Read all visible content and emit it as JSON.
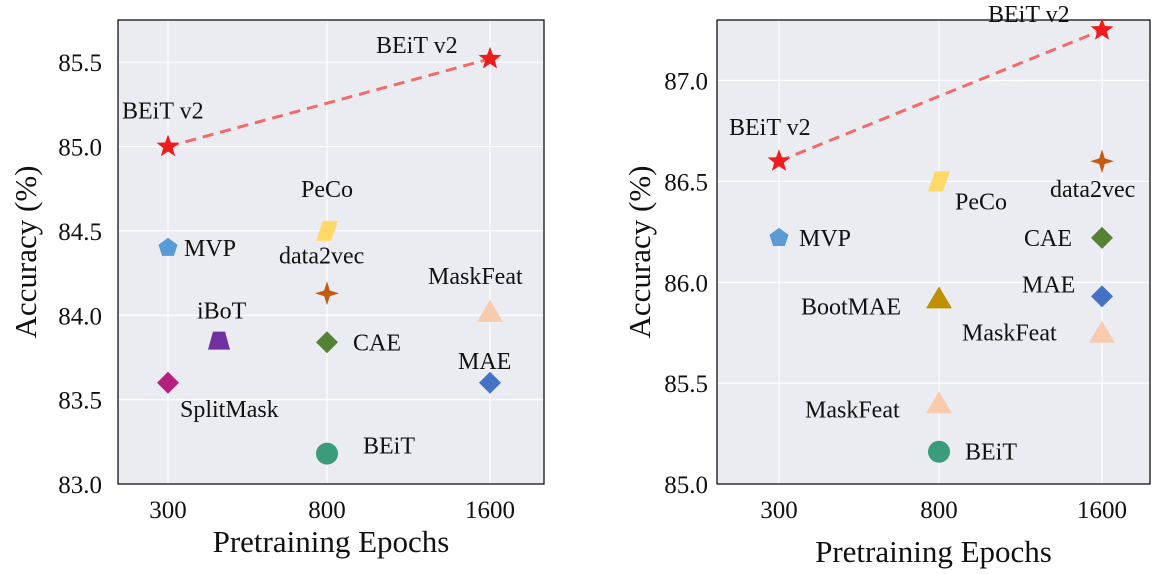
{
  "colors": {
    "plot_background": "#ebebf2",
    "grid": "#ffffff",
    "beit_v2_star": "#ee1c1c",
    "trend_line": "#f26b6b"
  },
  "chart_data": [
    {
      "type": "scatter",
      "xlabel": "Pretraining Epochs",
      "ylabel": "Accuracy (%)",
      "x_ticks": [
        "300",
        "800",
        "1600"
      ],
      "ylim": [
        83.0,
        85.75
      ],
      "y_ticks": [
        "83.0",
        "83.5",
        "84.0",
        "84.5",
        "85.0",
        "85.5"
      ],
      "grid": true,
      "legend": "none",
      "trend_line": {
        "from": [
          "300",
          85.0
        ],
        "to": [
          "1600",
          85.52
        ],
        "style": "dashed"
      },
      "points": [
        {
          "label": "BEiT v2",
          "x": "300",
          "y": 85.0,
          "marker": "star",
          "color": "#ee1c1c"
        },
        {
          "label": "BEiT v2",
          "x": "1600",
          "y": 85.52,
          "marker": "star",
          "color": "#ee1c1c"
        },
        {
          "label": "MVP",
          "x": "300",
          "y": 84.4,
          "marker": "pentagon",
          "color": "#5b9bd5"
        },
        {
          "label": "SplitMask",
          "x": "300",
          "y": 83.6,
          "marker": "diamond",
          "color": "#b5207e"
        },
        {
          "label": "iBoT",
          "x": "400",
          "y": 83.85,
          "marker": "trapezoid",
          "color": "#7030a0"
        },
        {
          "label": "PeCo",
          "x": "800",
          "y": 84.5,
          "marker": "parallelogram",
          "color": "#ffd966"
        },
        {
          "label": "data2vec",
          "x": "800",
          "y": 84.13,
          "marker": "star4",
          "color": "#c55a11"
        },
        {
          "label": "CAE",
          "x": "800",
          "y": 83.84,
          "marker": "diamond",
          "color": "#548235"
        },
        {
          "label": "BEiT",
          "x": "800",
          "y": 83.18,
          "marker": "circle",
          "color": "#3a9c7a"
        },
        {
          "label": "MaskFeat",
          "x": "1600",
          "y": 84.02,
          "marker": "triangle",
          "color": "#f8cbad"
        },
        {
          "label": "MAE",
          "x": "1600",
          "y": 83.6,
          "marker": "diamond",
          "color": "#4472c4"
        }
      ]
    },
    {
      "type": "scatter",
      "xlabel": "Pretraining Epochs",
      "ylabel": "Accuracy (%)",
      "x_ticks": [
        "300",
        "800",
        "1600"
      ],
      "ylim": [
        85.0,
        87.3
      ],
      "y_ticks": [
        "85.0",
        "85.5",
        "86.0",
        "86.5",
        "87.0"
      ],
      "grid": true,
      "legend": "none",
      "trend_line": {
        "from": [
          "300",
          86.6
        ],
        "to": [
          "1600",
          87.25
        ],
        "style": "dashed"
      },
      "points": [
        {
          "label": "BEiT v2",
          "x": "300",
          "y": 86.6,
          "marker": "star",
          "color": "#ee1c1c"
        },
        {
          "label": "BEiT v2",
          "x": "1600",
          "y": 87.25,
          "marker": "star",
          "color": "#ee1c1c"
        },
        {
          "label": "MVP",
          "x": "300",
          "y": 86.22,
          "marker": "pentagon",
          "color": "#5b9bd5"
        },
        {
          "label": "PeCo",
          "x": "800",
          "y": 86.5,
          "marker": "parallelogram",
          "color": "#ffd966"
        },
        {
          "label": "BootMAE",
          "x": "800",
          "y": 85.92,
          "marker": "triangle",
          "color": "#bf9000"
        },
        {
          "label": "MaskFeat",
          "x": "800",
          "y": 85.4,
          "marker": "triangle",
          "color": "#f8cbad"
        },
        {
          "label": "BEiT",
          "x": "800",
          "y": 85.16,
          "marker": "circle",
          "color": "#3a9c7a"
        },
        {
          "label": "data2vec",
          "x": "1600",
          "y": 86.6,
          "marker": "star4",
          "color": "#c55a11"
        },
        {
          "label": "CAE",
          "x": "1600",
          "y": 86.22,
          "marker": "diamond",
          "color": "#548235"
        },
        {
          "label": "MAE",
          "x": "1600",
          "y": 85.93,
          "marker": "diamond",
          "color": "#4472c4"
        },
        {
          "label": "MaskFeat",
          "x": "1600",
          "y": 85.75,
          "marker": "triangle",
          "color": "#f8cbad"
        }
      ]
    }
  ]
}
